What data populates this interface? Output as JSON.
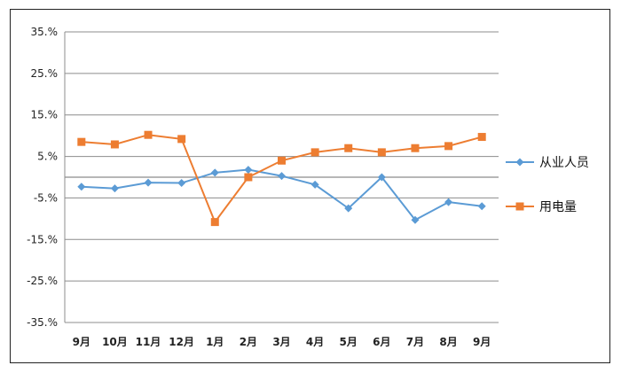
{
  "chart_data": {
    "type": "line",
    "categories": [
      "9月",
      "10月",
      "11月",
      "12月",
      "1月",
      "2月",
      "3月",
      "4月",
      "5月",
      "6月",
      "7月",
      "8月",
      "9月"
    ],
    "series": [
      {
        "name": "从业人员",
        "color": "#5B9BD5",
        "marker": "diamond",
        "values": [
          -2.3,
          -2.7,
          -1.3,
          -1.4,
          1.1,
          1.8,
          0.3,
          -1.8,
          -7.5,
          0.0,
          -10.3,
          -6.0,
          -7.0
        ]
      },
      {
        "name": "用电量",
        "color": "#ED7D31",
        "marker": "square",
        "values": [
          8.5,
          7.9,
          10.2,
          9.2,
          -10.8,
          0.0,
          4.0,
          6.0,
          7.0,
          6.0,
          7.0,
          7.5,
          9.7
        ]
      }
    ],
    "y_ticks": [
      "35.%",
      "25.%",
      "15.%",
      "5.%",
      "-5.%",
      "-15.%",
      "-25.%",
      "-35.%"
    ],
    "y_tick_values": [
      35,
      25,
      15,
      5,
      -5,
      -15,
      -25,
      -35
    ],
    "ylim": [
      -35,
      35
    ],
    "gridlines": [
      35,
      25,
      15,
      5,
      0,
      -5,
      -15,
      -25,
      -35
    ],
    "legend_position": "right",
    "title": "",
    "xlabel": "",
    "ylabel": ""
  }
}
